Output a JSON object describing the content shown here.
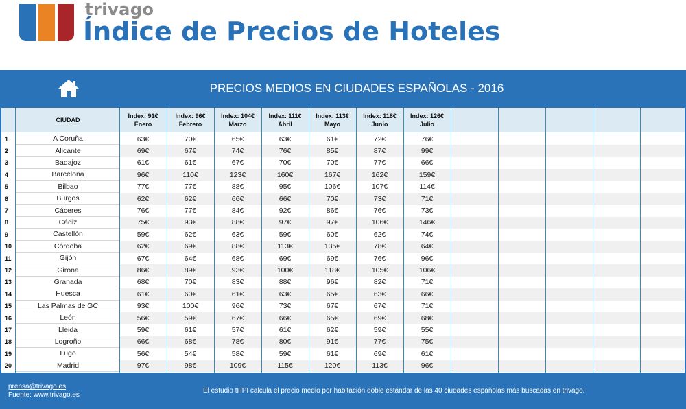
{
  "header": {
    "brand": "trivago",
    "title": "Índice de Precios de Hoteles"
  },
  "banner": {
    "title": "PRECIOS MEDIOS EN CIUDADES ESPAÑOLAS - 2016",
    "home_icon": "home-icon"
  },
  "colors": {
    "blue": "#2b73b8",
    "orange": "#e98324",
    "red": "#a8262a",
    "header_bg": "#dcebf3"
  },
  "table": {
    "city_header": "CIUDAD",
    "month_headers": [
      {
        "index": "Index: 91€",
        "month": "Enero"
      },
      {
        "index": "Index: 96€",
        "month": "Febrero"
      },
      {
        "index": "Index: 104€",
        "month": "Marzo"
      },
      {
        "index": "Index: 111€",
        "month": "Abril"
      },
      {
        "index": "Index: 113€",
        "month": "Mayo"
      },
      {
        "index": "Index: 118€",
        "month": "Junio"
      },
      {
        "index": "Index: 126€",
        "month": "Julio"
      }
    ],
    "rows": [
      {
        "n": "1",
        "city": "A Coruña",
        "values": [
          "63€",
          "70€",
          "65€",
          "63€",
          "61€",
          "72€",
          "76€"
        ]
      },
      {
        "n": "2",
        "city": "Alicante",
        "values": [
          "69€",
          "67€",
          "74€",
          "76€",
          "85€",
          "87€",
          "99€"
        ]
      },
      {
        "n": "3",
        "city": "Badajoz",
        "values": [
          "61€",
          "61€",
          "67€",
          "70€",
          "70€",
          "77€",
          "66€"
        ]
      },
      {
        "n": "4",
        "city": "Barcelona",
        "values": [
          "96€",
          "110€",
          "123€",
          "160€",
          "167€",
          "162€",
          "159€"
        ]
      },
      {
        "n": "5",
        "city": "Bilbao",
        "values": [
          "77€",
          "77€",
          "88€",
          "95€",
          "106€",
          "107€",
          "114€"
        ]
      },
      {
        "n": "6",
        "city": "Burgos",
        "values": [
          "62€",
          "62€",
          "66€",
          "66€",
          "70€",
          "73€",
          "71€"
        ]
      },
      {
        "n": "7",
        "city": "Cáceres",
        "values": [
          "76€",
          "77€",
          "84€",
          "92€",
          "86€",
          "76€",
          "73€"
        ]
      },
      {
        "n": "8",
        "city": "Cádiz",
        "values": [
          "75€",
          "93€",
          "88€",
          "97€",
          "97€",
          "106€",
          "146€"
        ]
      },
      {
        "n": "9",
        "city": "Castellón",
        "values": [
          "59€",
          "62€",
          "63€",
          "59€",
          "60€",
          "62€",
          "74€"
        ]
      },
      {
        "n": "10",
        "city": "Córdoba",
        "values": [
          "62€",
          "69€",
          "88€",
          "113€",
          "135€",
          "78€",
          "64€"
        ]
      },
      {
        "n": "11",
        "city": "Gijón",
        "values": [
          "67€",
          "64€",
          "68€",
          "69€",
          "69€",
          "76€",
          "96€"
        ]
      },
      {
        "n": "12",
        "city": "Girona",
        "values": [
          "86€",
          "89€",
          "93€",
          "100€",
          "118€",
          "105€",
          "106€"
        ]
      },
      {
        "n": "13",
        "city": "Granada",
        "values": [
          "68€",
          "70€",
          "83€",
          "88€",
          "96€",
          "82€",
          "71€"
        ]
      },
      {
        "n": "14",
        "city": "Huesca",
        "values": [
          "61€",
          "60€",
          "61€",
          "63€",
          "65€",
          "63€",
          "66€"
        ]
      },
      {
        "n": "15",
        "city": "Las Palmas de GC",
        "values": [
          "93€",
          "100€",
          "96€",
          "73€",
          "67€",
          "67€",
          "71€"
        ]
      },
      {
        "n": "16",
        "city": "León",
        "values": [
          "56€",
          "59€",
          "67€",
          "66€",
          "65€",
          "69€",
          "68€"
        ]
      },
      {
        "n": "17",
        "city": "Lleida",
        "values": [
          "59€",
          "61€",
          "57€",
          "61€",
          "62€",
          "59€",
          "55€"
        ]
      },
      {
        "n": "18",
        "city": "Logroño",
        "values": [
          "66€",
          "68€",
          "78€",
          "80€",
          "91€",
          "77€",
          "75€"
        ]
      },
      {
        "n": "19",
        "city": "Lugo",
        "values": [
          "56€",
          "54€",
          "58€",
          "59€",
          "61€",
          "69€",
          "61€"
        ]
      },
      {
        "n": "20",
        "city": "Madrid",
        "values": [
          "97€",
          "98€",
          "109€",
          "115€",
          "120€",
          "113€",
          "96€"
        ]
      }
    ]
  },
  "footer": {
    "email": "prensa@trivago.es",
    "source": "Fuente: www.trivago.es",
    "note": "El estudio tHPI calcula el precio medio por habitación doble estándar de las 40 ciudades españolas más buscadas en trivago."
  }
}
